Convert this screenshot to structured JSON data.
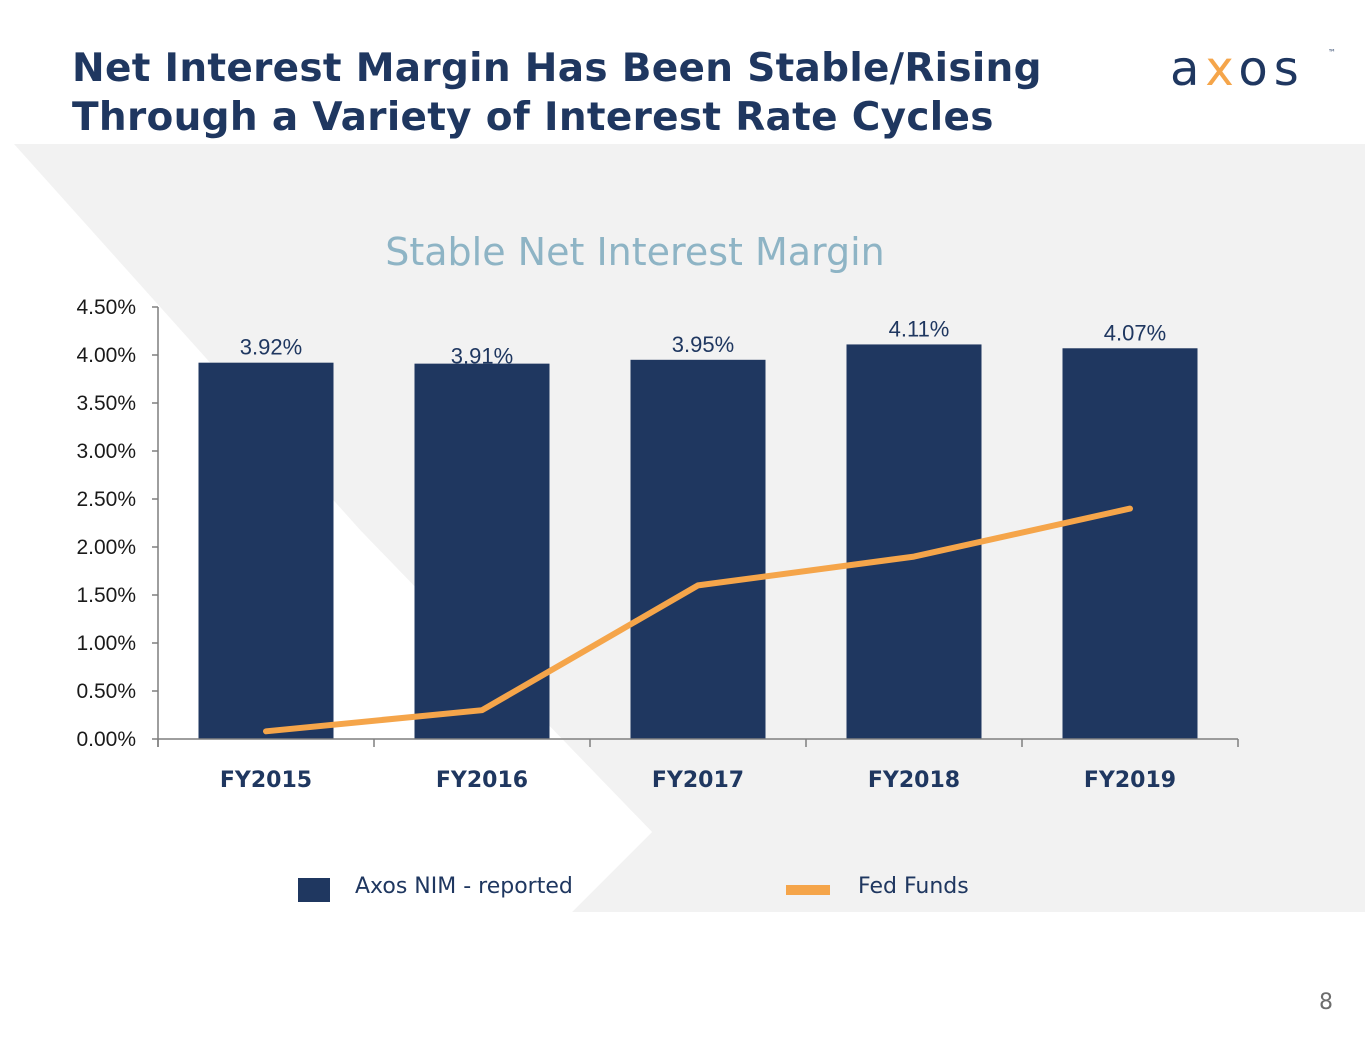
{
  "slide": {
    "title_line1": "Net Interest Margin Has Been Stable/Rising",
    "title_line2": "Through a Variety of Interest Rate Cycles",
    "page_number": "8"
  },
  "logo": {
    "pre": "a",
    "x": "x",
    "post": "os",
    "tm": "™"
  },
  "colors": {
    "navy": "#1f3760",
    "orange": "#f5a54a",
    "title_teal": "#8eb4c5",
    "background_panel": "#f2f2f2",
    "axis": "#7f7f7f"
  },
  "chart_data": {
    "type": "bar",
    "title": "Stable Net Interest Margin",
    "categories": [
      "FY2015",
      "FY2016",
      "FY2017",
      "FY2018",
      "FY2019"
    ],
    "series": [
      {
        "name": "Axos NIM - reported",
        "type": "bar",
        "values": [
          3.92,
          3.91,
          3.95,
          4.11,
          4.07
        ],
        "labels": [
          "3.92%",
          "3.91%",
          "3.95%",
          "4.11%",
          "4.07%"
        ]
      },
      {
        "name": "Fed Funds",
        "type": "line",
        "values": [
          0.08,
          0.3,
          1.6,
          1.9,
          2.4
        ]
      }
    ],
    "ylim": [
      0,
      4.5
    ],
    "y_ticks": [
      "0.00%",
      "0.50%",
      "1.00%",
      "1.50%",
      "2.00%",
      "2.50%",
      "3.00%",
      "3.50%",
      "4.00%",
      "4.50%"
    ],
    "legend_position": "bottom",
    "grid": false
  }
}
